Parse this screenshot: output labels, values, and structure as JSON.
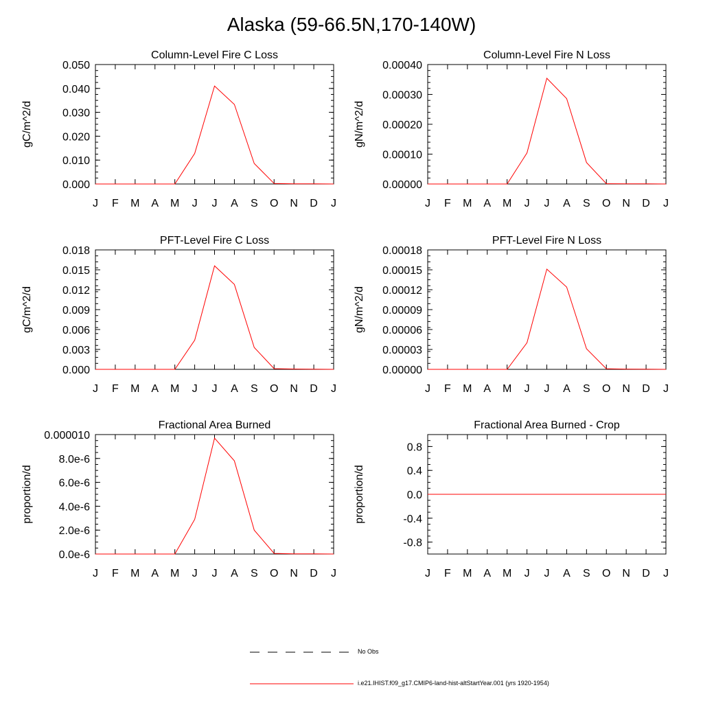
{
  "page_title": "Alaska (59-66.5N,170-140W)",
  "months": [
    "J",
    "F",
    "M",
    "A",
    "M",
    "J",
    "J",
    "A",
    "S",
    "O",
    "N",
    "D",
    "J"
  ],
  "colors": {
    "series": "#ff0000",
    "axis": "#000000",
    "obs": "#000000"
  },
  "legend": {
    "obs_label": "No Obs",
    "model_label": "i.e21.IHIST.f09_g17.CMIP6-land-hist-altStartYear.001 (yrs 1920-1954)"
  },
  "chart_data": [
    {
      "type": "line",
      "title": "Column-Level Fire C Loss",
      "ylabel": "gC/m^2/d",
      "ylim": [
        0,
        0.05
      ],
      "yticks": [
        "0.000",
        "0.010",
        "0.020",
        "0.030",
        "0.040",
        "0.050"
      ],
      "categories": [
        "J",
        "F",
        "M",
        "A",
        "M",
        "J",
        "J",
        "A",
        "S",
        "O",
        "N",
        "D",
        "J"
      ],
      "values": [
        0,
        0,
        0,
        0,
        0,
        0.0128,
        0.041,
        0.0333,
        0.0086,
        0.0002,
        0.0001,
        0.0001,
        0
      ]
    },
    {
      "type": "line",
      "title": "Column-Level Fire N Loss",
      "ylabel": "gN/m^2/d",
      "ylim": [
        0,
        0.0004
      ],
      "yticks": [
        "0.00000",
        "0.00010",
        "0.00020",
        "0.00030",
        "0.00040"
      ],
      "categories": [
        "J",
        "F",
        "M",
        "A",
        "M",
        "J",
        "J",
        "A",
        "S",
        "O",
        "N",
        "D",
        "J"
      ],
      "values": [
        0,
        0,
        0,
        0,
        0,
        0.000104,
        0.000354,
        0.000286,
        7.2e-05,
        1e-06,
        5e-07,
        5e-07,
        0
      ]
    },
    {
      "type": "line",
      "title": "PFT-Level Fire C Loss",
      "ylabel": "gC/m^2/d",
      "ylim": [
        0,
        0.018
      ],
      "yticks": [
        "0.000",
        "0.003",
        "0.006",
        "0.009",
        "0.012",
        "0.015",
        "0.018"
      ],
      "categories": [
        "J",
        "F",
        "M",
        "A",
        "M",
        "J",
        "J",
        "A",
        "S",
        "O",
        "N",
        "D",
        "J"
      ],
      "values": [
        0,
        0,
        0,
        0,
        0,
        0.0044,
        0.0156,
        0.0128,
        0.0033,
        0.0001,
        5e-05,
        3e-05,
        0
      ]
    },
    {
      "type": "line",
      "title": "PFT-Level Fire N Loss",
      "ylabel": "gN/m^2/d",
      "ylim": [
        0,
        0.00018
      ],
      "yticks": [
        "0.00000",
        "0.00003",
        "0.00006",
        "0.00009",
        "0.00012",
        "0.00015",
        "0.00018"
      ],
      "categories": [
        "J",
        "F",
        "M",
        "A",
        "M",
        "J",
        "J",
        "A",
        "S",
        "O",
        "N",
        "D",
        "J"
      ],
      "values": [
        0,
        0,
        0,
        0,
        0,
        4e-05,
        0.000151,
        0.000124,
        3.1e-05,
        8e-07,
        4e-07,
        3e-07,
        0
      ]
    },
    {
      "type": "line",
      "title": "Fractional Area Burned",
      "ylabel": "proportion/d",
      "ylim": [
        0,
        1e-05
      ],
      "yticks": [
        "0.0e-6",
        "2.0e-6",
        "4.0e-6",
        "6.0e-6",
        "8.0e-6",
        "0.000010"
      ],
      "categories": [
        "J",
        "F",
        "M",
        "A",
        "M",
        "J",
        "J",
        "A",
        "S",
        "O",
        "N",
        "D",
        "J"
      ],
      "values": [
        0,
        0,
        0,
        0,
        0,
        2.9e-06,
        9.7e-06,
        7.8e-06,
        2e-06,
        5e-08,
        2e-08,
        1e-08,
        0
      ]
    },
    {
      "type": "line",
      "title": "Fractional Area Burned - Crop",
      "ylabel": "proportion/d",
      "ylim": [
        -1,
        1
      ],
      "yticks": [
        "-0.8",
        "-0.4",
        "0.0",
        "0.4",
        "0.8"
      ],
      "ytick_values": [
        -0.8,
        -0.4,
        0,
        0.4,
        0.8
      ],
      "categories": [
        "J",
        "F",
        "M",
        "A",
        "M",
        "J",
        "J",
        "A",
        "S",
        "O",
        "N",
        "D",
        "J"
      ],
      "values": [
        0,
        0,
        0,
        0,
        0,
        0,
        0,
        0,
        0,
        0,
        0,
        0,
        0
      ]
    }
  ]
}
